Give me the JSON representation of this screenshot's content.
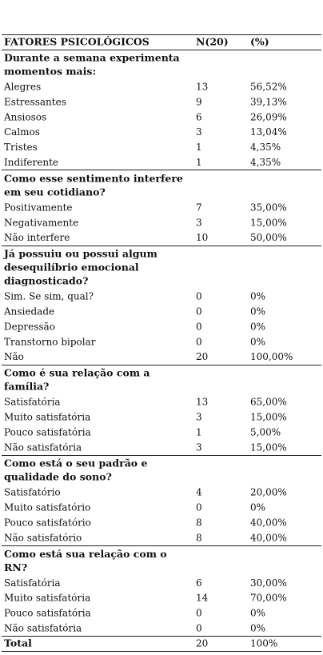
{
  "header": {
    "label": "FATORES PSICOLÓGICOS",
    "n": "N(20)",
    "pct": "(%)"
  },
  "sections": [
    {
      "title": [
        "Durante a semana experimenta",
        "momentos mais:"
      ],
      "rows": [
        [
          "Alegres",
          "13",
          "56,52%"
        ],
        [
          "Estressantes",
          "9",
          "39,13%"
        ],
        [
          "Ansiosos",
          "6",
          "26,09%"
        ],
        [
          "Calmos",
          "3",
          "13,04%"
        ],
        [
          "Tristes",
          "1",
          "4,35%"
        ],
        [
          "Indiferente",
          "1",
          "4,35%"
        ]
      ]
    },
    {
      "title": [
        "Como esse sentimento interfere",
        "em seu cotidiano?"
      ],
      "rows": [
        [
          "Positivamente",
          "7",
          "35,00%"
        ],
        [
          "Negativamente",
          "3",
          "15,00%"
        ],
        [
          "Não interfere",
          "10",
          "50,00%"
        ]
      ]
    },
    {
      "title": [
        "Já possuiu ou possui algum",
        "desequilíbrio emocional",
        "diagnosticado?"
      ],
      "rows": [
        [
          "Sim. Se sim, qual?",
          "0",
          "0%"
        ],
        [
          "Ansiedade",
          "0",
          "0%"
        ],
        [
          "Depressão",
          "0",
          "0%"
        ],
        [
          "Transtorno bipolar",
          "0",
          "0%"
        ],
        [
          "Não",
          "20",
          "100,00%"
        ]
      ]
    },
    {
      "title": [
        "Como é sua relação com a",
        "família?"
      ],
      "rows": [
        [
          "Satisfatória",
          "13",
          "65,00%"
        ],
        [
          "Muito satisfatória",
          "3",
          "15,00%"
        ],
        [
          "Pouco satisfatória",
          "1",
          "5,00%"
        ],
        [
          "Não satisfatória",
          "3",
          "15,00%"
        ]
      ]
    },
    {
      "title": [
        "Como está o seu padrão e",
        "qualidade do sono?"
      ],
      "rows": [
        [
          "Satisfatório",
          "4",
          "20,00%"
        ],
        [
          "Muito satisfatório",
          "0",
          "0%"
        ],
        [
          "Pouco satisfatório",
          "8",
          "40,00%"
        ],
        [
          "Não satisfatório",
          "8",
          "40,00%"
        ]
      ]
    },
    {
      "title": [
        "Como está sua relação com o",
        "RN?"
      ],
      "rows": [
        [
          "Satisfatória",
          "6",
          "30,00%"
        ],
        [
          "Muito satisfatória",
          "14",
          "70,00%"
        ],
        [
          "Pouco satisfatória",
          "0",
          "0%"
        ],
        [
          "Não satisfatória",
          "0",
          "0%"
        ]
      ]
    }
  ],
  "total": [
    "Total",
    "20",
    "100%"
  ]
}
